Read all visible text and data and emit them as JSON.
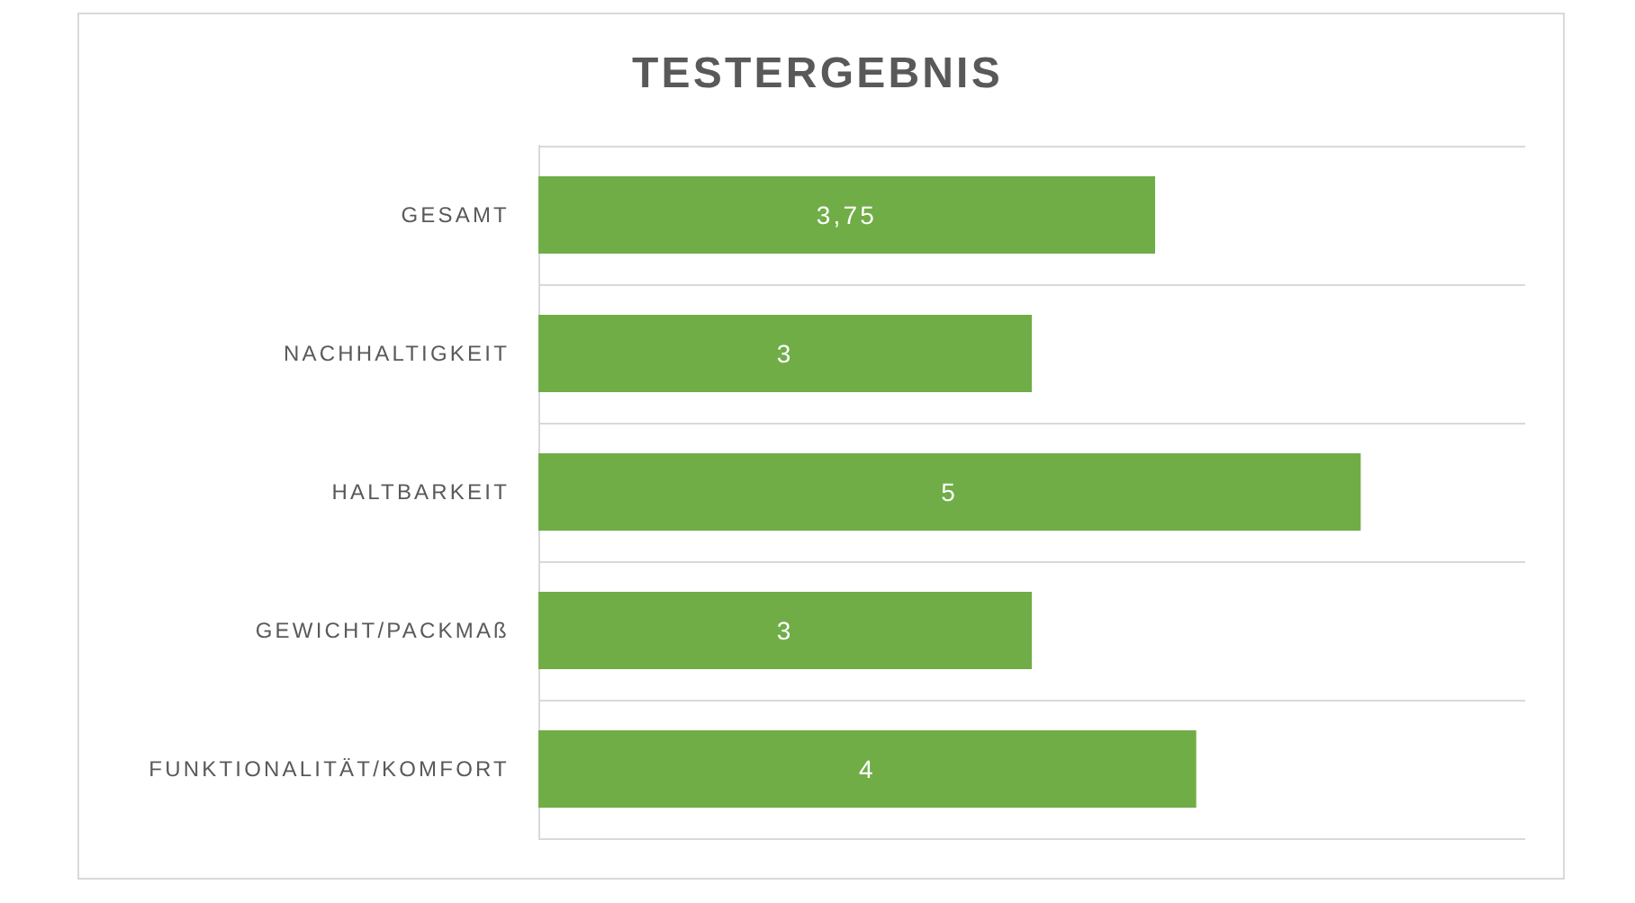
{
  "chart_data": {
    "type": "bar",
    "orientation": "horizontal",
    "title": "TESTERGEBNIS",
    "categories": [
      "GESAMT",
      "NACHHALTIGKEIT",
      "HALTBARKEIT",
      "GEWICHT/PACKMAß",
      "FUNKTIONALITÄT/KOMFORT"
    ],
    "values": [
      3.75,
      3,
      5,
      3,
      4
    ],
    "value_labels": [
      "3,75",
      "3",
      "5",
      "3",
      "4"
    ],
    "color": "#70ad47",
    "xlim": [
      0,
      6
    ],
    "tick_labels": "y",
    "grid": "y"
  }
}
